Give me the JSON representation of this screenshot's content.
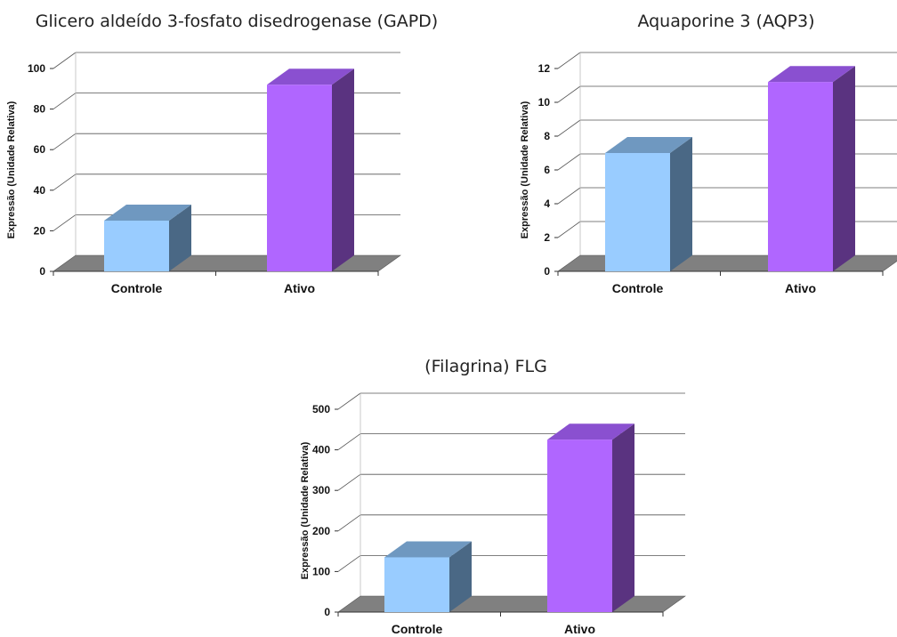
{
  "colors": {
    "controle_front": "#99ccff",
    "controle_side": "#4a6885",
    "controle_top": "#6f98c0",
    "ativo_front": "#b066ff",
    "ativo_side": "#5a3380",
    "ativo_top": "#8a50d0",
    "floor": "#808080",
    "grid": "#555555"
  },
  "chart_data": [
    {
      "type": "bar",
      "title": "Glicero aldeído 3-fosfato disedrogenase (GAPD)",
      "ylabel": "Expressão (Unidade Relativa)",
      "xlabel": "",
      "categories": [
        "Controle",
        "Ativo"
      ],
      "values": [
        25,
        92
      ],
      "ylim": [
        0,
        100
      ],
      "yticks": [
        0,
        20,
        40,
        60,
        80,
        100
      ],
      "grid": true,
      "legend": "none"
    },
    {
      "type": "bar",
      "title": "Aquaporine 3 (AQP3)",
      "ylabel": "Expressão (Unidade Relativa)",
      "xlabel": "",
      "categories": [
        "Controle",
        "Ativo"
      ],
      "values": [
        7,
        11.2
      ],
      "ylim": [
        0,
        12
      ],
      "yticks": [
        0,
        2,
        4,
        6,
        8,
        10,
        12
      ],
      "grid": true,
      "legend": "none"
    },
    {
      "type": "bar",
      "title": "(Filagrina) FLG",
      "ylabel": "Expressão (Unidade Relativa)",
      "xlabel": "",
      "categories": [
        "Controle",
        "Ativo"
      ],
      "values": [
        135,
        425
      ],
      "ylim": [
        0,
        500
      ],
      "yticks": [
        0,
        100,
        200,
        300,
        400,
        500
      ],
      "grid": true,
      "legend": "none"
    }
  ]
}
